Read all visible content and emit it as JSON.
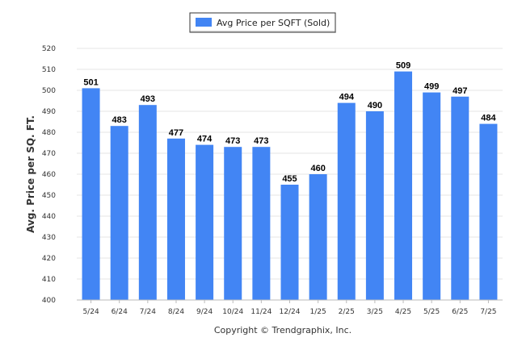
{
  "chart_data": {
    "type": "bar",
    "categories": [
      "5/24",
      "6/24",
      "7/24",
      "8/24",
      "9/24",
      "10/24",
      "11/24",
      "12/24",
      "1/25",
      "2/25",
      "3/25",
      "4/25",
      "5/25",
      "6/25",
      "7/25"
    ],
    "series": [
      {
        "name": "Avg Price per SQFT (Sold)",
        "values": [
          501,
          483,
          493,
          477,
          474,
          473,
          473,
          455,
          460,
          494,
          490,
          509,
          499,
          497,
          484
        ],
        "color": "#4285f4"
      }
    ],
    "title": "",
    "xlabel": "",
    "ylabel": "Avg. Price per SQ. FT.",
    "ylim": [
      400,
      520
    ],
    "yticks": [
      400,
      410,
      420,
      430,
      440,
      450,
      460,
      470,
      480,
      490,
      500,
      510,
      520
    ],
    "grid": true,
    "legend_position": "top-center",
    "data_labels": true
  },
  "footer": {
    "copyright": "Copyright © Trendgraphix, Inc."
  }
}
